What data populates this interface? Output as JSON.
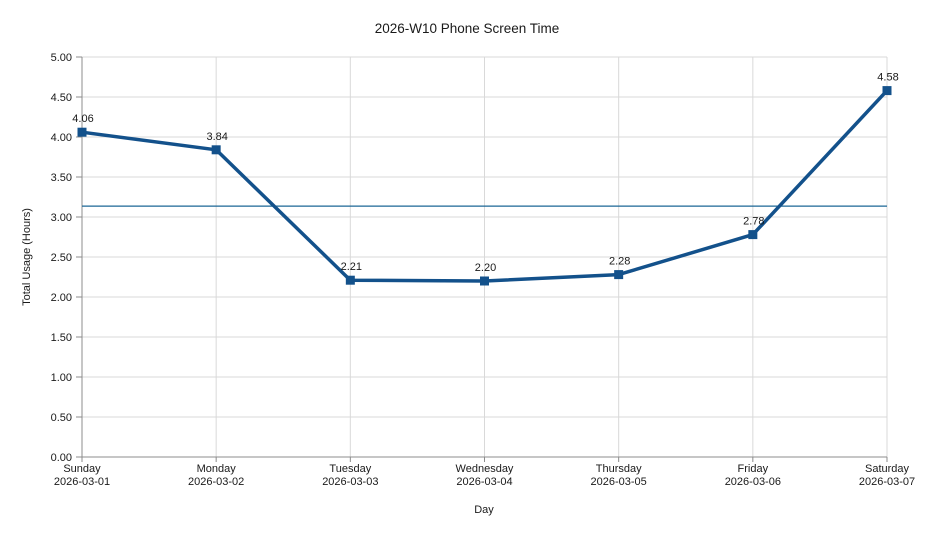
{
  "chart_data": {
    "type": "line",
    "title": "2026-W10 Phone Screen Time",
    "xlabel": "Day",
    "ylabel": "Total Usage (Hours)",
    "ylim": [
      0,
      5
    ],
    "ytick_step": 0.5,
    "ytick_format_decimals": 2,
    "categories": [
      {
        "day": "Sunday",
        "date": "2026-03-01"
      },
      {
        "day": "Monday",
        "date": "2026-03-02"
      },
      {
        "day": "Tuesday",
        "date": "2026-03-03"
      },
      {
        "day": "Wednesday",
        "date": "2026-03-04"
      },
      {
        "day": "Thursday",
        "date": "2026-03-05"
      },
      {
        "day": "Friday",
        "date": "2026-03-06"
      },
      {
        "day": "Saturday",
        "date": "2026-03-07"
      }
    ],
    "series": [
      {
        "name": "Total Usage",
        "values": [
          4.06,
          3.84,
          2.21,
          2.2,
          2.28,
          2.78,
          4.58
        ],
        "point_labels": [
          "4.06",
          "3.84",
          "2.21",
          "2.20",
          "2.28",
          "2.78",
          "4.58"
        ]
      }
    ],
    "average_line": 3.136,
    "grid": true,
    "legend": "none",
    "colors": {
      "line": "#13518b",
      "marker": "#13518b",
      "average_line": "#1b6796",
      "grid": "#d9d9d9",
      "axis": "#8c8c8c",
      "tick": "#8c8c8c",
      "text": "#1a1a1a",
      "background": "#ffffff"
    }
  }
}
